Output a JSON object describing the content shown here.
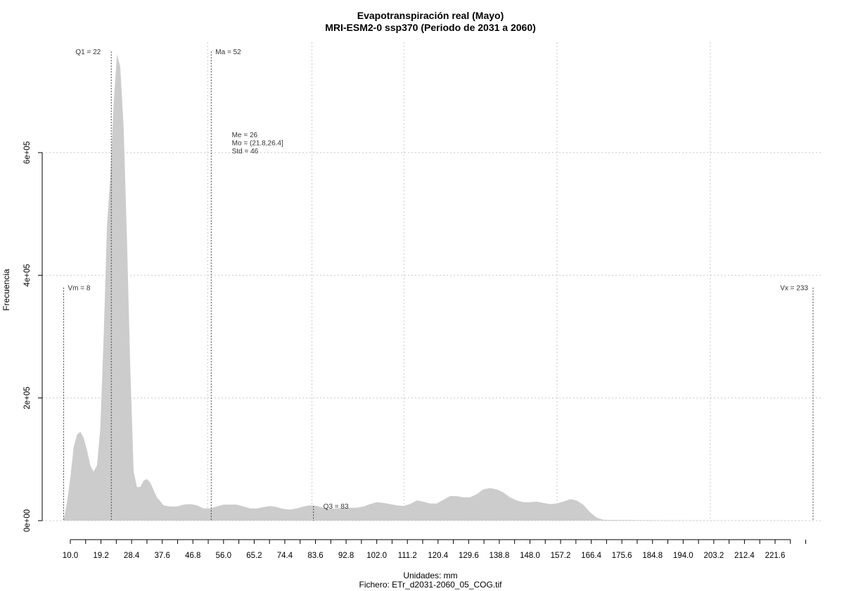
{
  "chart_data": {
    "type": "area",
    "title": "Evapotranspiración real (Mayo)",
    "subtitle": "MRI-ESM2-0 ssp370 (Periodo de 2031 a 2060)",
    "xlabel": "Unidades: mm",
    "footer": "Fichero: ETr_d2031-2060_05_COG.tif",
    "ylabel": "Frecuencia",
    "xlim": [
      5.7,
      234.2
    ],
    "ylim": [
      0,
      780000
    ],
    "x_ticks": [
      "10.0",
      "19.2",
      "28.4",
      "37.6",
      "46.8",
      "56.0",
      "65.2",
      "74.4",
      "83.6",
      "92.8",
      "102.0",
      "111.2",
      "120.4",
      "129.6",
      "138.8",
      "148.0",
      "157.2",
      "166.4",
      "175.6",
      "184.8",
      "194.0",
      "203.2",
      "212.4",
      "221.6"
    ],
    "y_ticks": [
      {
        "value": 0,
        "label": "0e+00"
      },
      {
        "value": 200000,
        "label": "2e+05"
      },
      {
        "value": 400000,
        "label": "4e+05"
      },
      {
        "value": 600000,
        "label": "6e+05"
      }
    ],
    "grid": true,
    "fill_color": "#cccccc",
    "series": [
      {
        "x": [
          8,
          9,
          10,
          11,
          12,
          13,
          14,
          15,
          16,
          17,
          18,
          19,
          20,
          21,
          22,
          23,
          24,
          25,
          26,
          27,
          28,
          29,
          30,
          31,
          32,
          33,
          34,
          35,
          36,
          38,
          40,
          42,
          44,
          46,
          48,
          50,
          52,
          54,
          56,
          58,
          60,
          62,
          64,
          66,
          68,
          70,
          72,
          74,
          76,
          78,
          80,
          82,
          84,
          86,
          88,
          90,
          92,
          94,
          96,
          98,
          100,
          102,
          104,
          106,
          108,
          110,
          112,
          114,
          116,
          118,
          120,
          122,
          124,
          126,
          128,
          130,
          132,
          134,
          136,
          138,
          140,
          142,
          144,
          146,
          148,
          150,
          152,
          154,
          156,
          158,
          160,
          162,
          164,
          166,
          168,
          170,
          175,
          180,
          190,
          200,
          210,
          220,
          230,
          233
        ],
        "y": [
          0,
          30000,
          70000,
          120000,
          140000,
          145000,
          135000,
          115000,
          90000,
          80000,
          90000,
          150000,
          300000,
          480000,
          560000,
          680000,
          760000,
          740000,
          640000,
          460000,
          250000,
          80000,
          55000,
          55000,
          65000,
          68000,
          62000,
          50000,
          38000,
          25000,
          23000,
          23000,
          26000,
          27000,
          25000,
          20000,
          20000,
          23000,
          26000,
          26000,
          26000,
          23000,
          20000,
          20000,
          22000,
          24000,
          22000,
          19000,
          18000,
          20000,
          23000,
          25000,
          24000,
          21000,
          19000,
          20000,
          21000,
          21000,
          21000,
          23000,
          27000,
          30000,
          29000,
          27000,
          25000,
          24000,
          27000,
          33000,
          31000,
          28000,
          28000,
          34000,
          40000,
          40000,
          38000,
          38000,
          43000,
          51000,
          53000,
          51000,
          46000,
          38000,
          33000,
          30000,
          30000,
          31000,
          29000,
          27000,
          28000,
          31000,
          35000,
          33000,
          26000,
          14000,
          5000,
          1500,
          1000,
          800,
          600,
          400,
          300,
          200,
          100,
          0
        ]
      }
    ],
    "markers": [
      {
        "label": "Vm = 8",
        "x": 8,
        "y": 380000,
        "dx": 6,
        "dy": 0,
        "anchor": "start"
      },
      {
        "label": "Q1 = 22",
        "x": 22.3,
        "y": 765000,
        "dx": -15,
        "dy": 0,
        "anchor": "end"
      },
      {
        "label": "Ma = 52",
        "x": 52.3,
        "y": 765000,
        "dx": 6,
        "dy": 0,
        "anchor": "start"
      },
      {
        "label": "Q3 = 83",
        "x": 83,
        "y": 24000,
        "dx": 14,
        "dy": 0,
        "anchor": "start"
      },
      {
        "label": "Vx = 233",
        "x": 233,
        "y": 380000,
        "dx": -7,
        "dy": 0,
        "anchor": "end"
      }
    ],
    "stats": {
      "x": 58.5,
      "y": 625000,
      "lines": [
        "Me = 26",
        "Mo = (21.8,26.4]",
        "Std = 46"
      ]
    }
  }
}
